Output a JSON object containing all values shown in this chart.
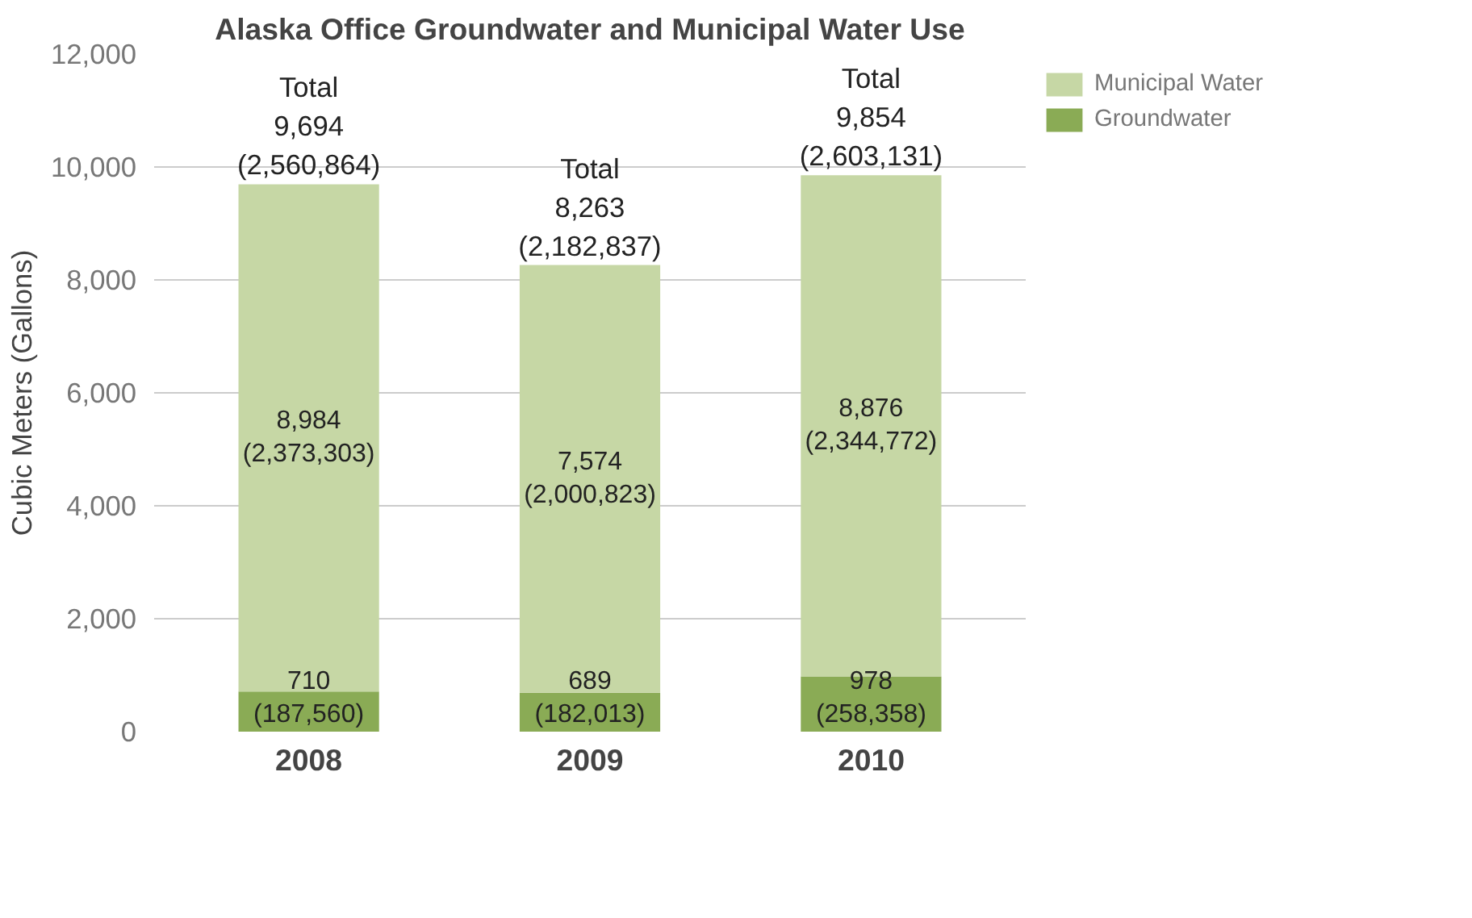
{
  "chart_data": {
    "type": "bar",
    "title": "Alaska Office Groundwater and Municipal Water Use",
    "ylabel": "Cubic Meters (Gallons)",
    "categories": [
      "2008",
      "2009",
      "2010"
    ],
    "stacked": true,
    "series": [
      {
        "name": "Groundwater",
        "color": "#8aab55",
        "values": [
          710,
          689,
          978
        ],
        "value_labels": [
          "710\n(187,560)",
          "689\n(182,013)",
          "978\n(258,358)"
        ]
      },
      {
        "name": "Municipal Water",
        "color": "#c6d7a5",
        "values": [
          8984,
          7574,
          8876
        ],
        "value_labels": [
          "8,984\n(2,373,303)",
          "7,574\n(2,000,823)",
          "8,876\n(2,344,772)"
        ]
      }
    ],
    "totals": [
      "Total\n9,694\n(2,560,864)",
      "Total\n8,263\n(2,182,837)",
      "Total\n9,854\n(2,603,131)"
    ],
    "ylim": [
      0,
      12000
    ],
    "yticks": [
      0,
      {
        "value": 2000,
        "label": "2,000"
      },
      {
        "value": 4000,
        "label": "4,000"
      },
      {
        "value": 6000,
        "label": "6,000"
      },
      {
        "value": 8000,
        "label": "8,000"
      },
      {
        "value": 10000,
        "label": "10,000"
      },
      {
        "value": 12000,
        "label": "12,000"
      }
    ],
    "grid": "y",
    "legend": "top right"
  }
}
